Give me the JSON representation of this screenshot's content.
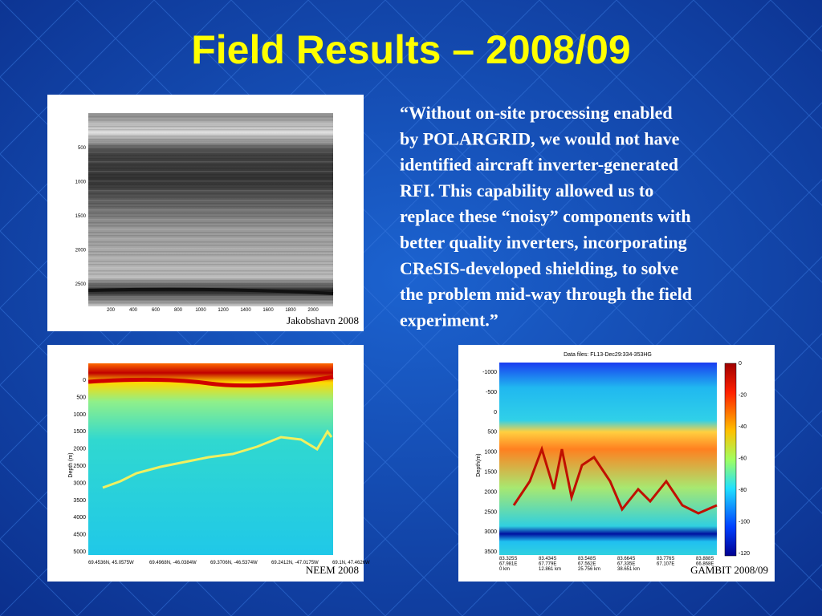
{
  "title": "Field Results – 2008/09",
  "quote": [
    "“Without on-site processing enabled",
    "by POLARGRID, we would not have",
    "identified aircraft inverter-generated",
    "RFI.  This capability allowed us to",
    "replace these “noisy” components with",
    "better quality inverters, incorporating",
    "CReSIS-developed shielding, to solve",
    "the problem mid-way through the field",
    "experiment.”"
  ],
  "panels": {
    "jakobshavn": {
      "caption": "Jakobshavn 2008",
      "yticks": [
        "500",
        "1000",
        "1500",
        "2000",
        "2500"
      ],
      "xticks": [
        "200",
        "400",
        "600",
        "800",
        "1000",
        "1200",
        "1400",
        "1600",
        "1800",
        "2000"
      ]
    },
    "neem": {
      "caption": "NEEM 2008",
      "ylabel": "Depth (m)",
      "yticks": [
        "0",
        "500",
        "1000",
        "1500",
        "2000",
        "2500",
        "3000",
        "3500",
        "4000",
        "4500",
        "5000"
      ],
      "xticks": [
        "69.4536N, 45.0575W",
        "69.4968N, -46.0384W",
        "69.3706N, -46.5374W",
        "69.2412N, -47.0175W",
        "69.1N, 47.4626W"
      ]
    },
    "gambit": {
      "caption": "GAMBIT 2008/09",
      "title": "Data files: FL13-Dec29:334-353HG",
      "ylabel": "Depth(m)",
      "yticks": [
        "-1000",
        "-500",
        "0",
        "500",
        "1000",
        "1500",
        "2000",
        "2500",
        "3000",
        "3500"
      ],
      "cbticks": [
        "0",
        "-20",
        "-40",
        "-60",
        "-80",
        "-100",
        "-120"
      ],
      "xticks": [
        [
          "83.325S",
          "67.981E",
          "0 km"
        ],
        [
          "83.434S",
          "67.779E",
          "12.861 km"
        ],
        [
          "83.548S",
          "67.562E",
          "25.756 km"
        ],
        [
          "83.664S",
          "67.335E",
          "38.651 km"
        ],
        [
          "83.776S",
          "67.107E"
        ],
        [
          "83.888S",
          "66.868E"
        ]
      ]
    }
  }
}
